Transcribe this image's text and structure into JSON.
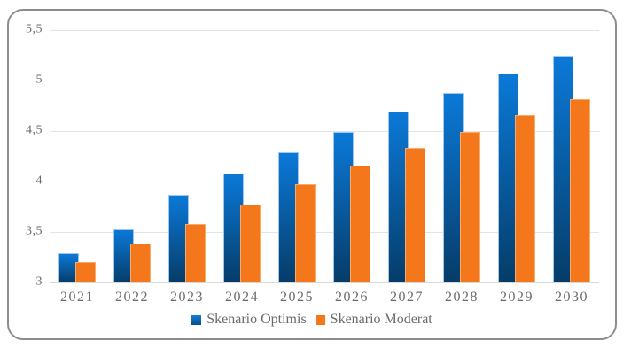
{
  "chart_data": {
    "type": "bar",
    "title": "",
    "xlabel": "",
    "ylabel": "",
    "categories": [
      "2021",
      "2022",
      "2023",
      "2024",
      "2025",
      "2026",
      "2027",
      "2028",
      "2029",
      "2030"
    ],
    "series": [
      {
        "name": "Skenario Optimis",
        "values": [
          3.29,
          3.53,
          3.87,
          4.08,
          4.29,
          4.49,
          4.69,
          4.88,
          5.07,
          5.25
        ]
      },
      {
        "name": "Skenario Moderat",
        "values": [
          3.2,
          3.39,
          3.58,
          3.77,
          3.97,
          4.16,
          4.33,
          4.49,
          4.66,
          4.82
        ]
      }
    ],
    "ylim": [
      3,
      5.5
    ],
    "yticks": [
      {
        "value": 3,
        "label": "3"
      },
      {
        "value": 3.5,
        "label": "3,5"
      },
      {
        "value": 4,
        "label": "4"
      },
      {
        "value": 4.5,
        "label": "4,5"
      },
      {
        "value": 5,
        "label": "5"
      },
      {
        "value": 5.5,
        "label": "5,5"
      }
    ],
    "grid": true,
    "legend_position": "bottom",
    "decimal_separator": ","
  },
  "colors": {
    "optimis_gradient_top": "#0b79d8",
    "optimis_gradient_bottom": "#063c68",
    "optimis_border": "#9ec8ef",
    "optimis_legend_top": "#1080d8",
    "optimis_legend_bottom": "#0a4f8c",
    "moderat": "#f5771c",
    "moderat_border": "#f9ab6a",
    "frame_border": "#8c8c8c",
    "gridline": "#e4e4e4",
    "axis_line": "#d9d9d9",
    "label_text": "#6a6a6a",
    "background": "#ffffff"
  }
}
